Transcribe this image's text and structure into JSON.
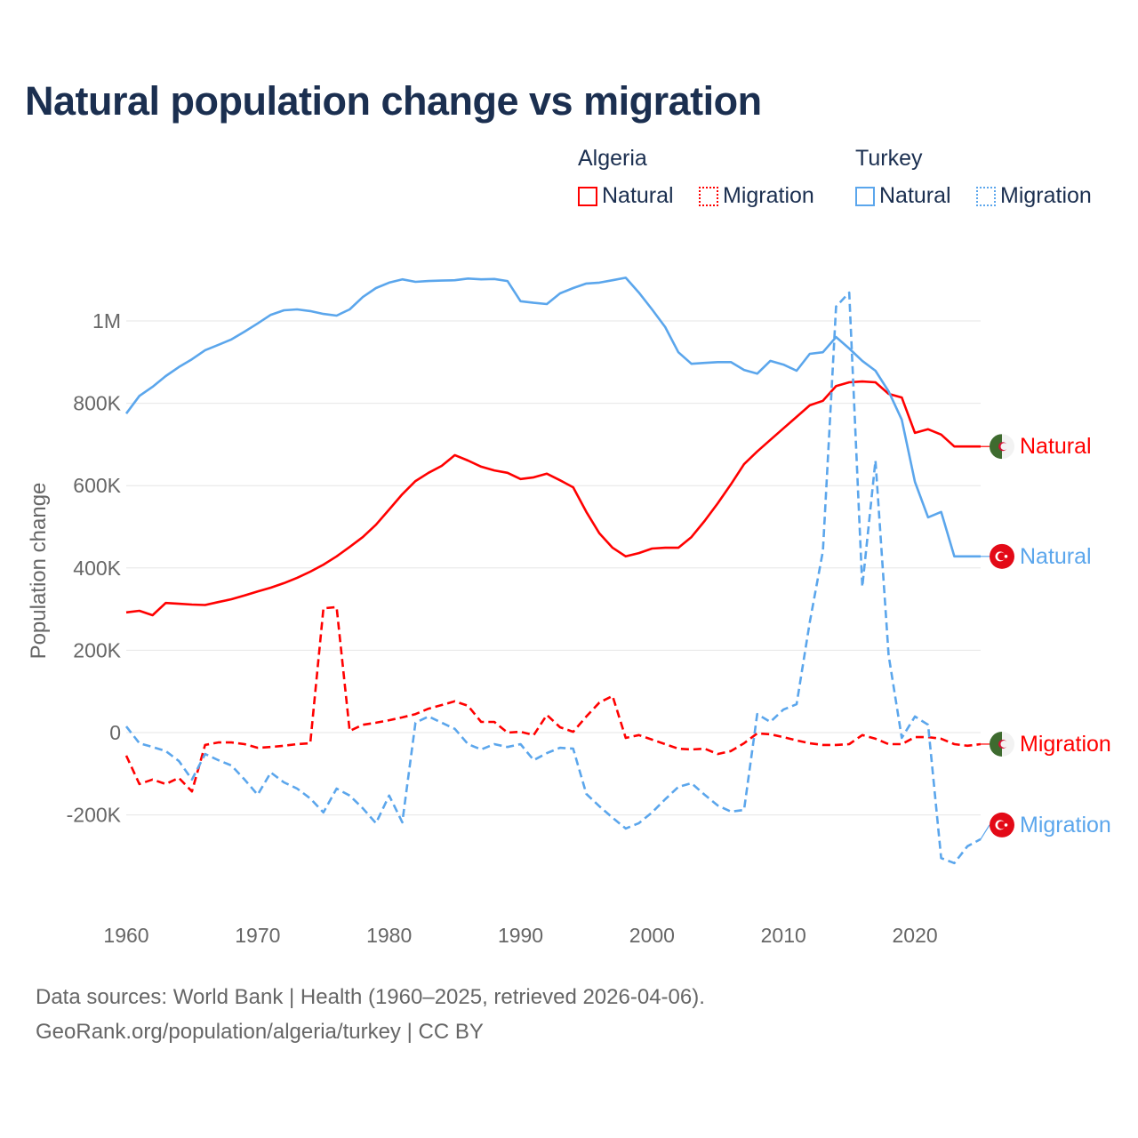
{
  "title": "Natural population change vs migration",
  "legend": {
    "groups": [
      {
        "name": "Algeria",
        "items": [
          "Natural",
          "Migration"
        ]
      },
      {
        "name": "Turkey",
        "items": [
          "Natural",
          "Migration"
        ]
      }
    ]
  },
  "colors": {
    "algeria": "#ff0000",
    "turkey": "#5ba6ec",
    "title": "#1b2f50"
  },
  "footer": {
    "line1": "Data sources: World Bank | Health (1960–2025, retrieved 2026-04-06).",
    "line2": "GeoRank.org/population/algeria/turkey | CC BY"
  },
  "chart_data": {
    "type": "line",
    "title": "Natural population change vs migration",
    "xlabel": "",
    "ylabel": "Population change",
    "xlim": [
      1960,
      2025
    ],
    "ylim": [
      -400000,
      1150000
    ],
    "x_ticks": [
      1960,
      1970,
      1980,
      1990,
      2000,
      2010,
      2020
    ],
    "x_tick_labels": [
      "1960",
      "1970",
      "1980",
      "1990",
      "2000",
      "2010",
      "2020"
    ],
    "y_ticks": [
      -200000,
      0,
      200000,
      400000,
      600000,
      800000,
      1000000
    ],
    "y_tick_labels": [
      "-200K",
      "0",
      "200K",
      "400K",
      "600K",
      "800K",
      "1M"
    ],
    "grid": true,
    "legend_placement": "top-right",
    "x_start": 1960,
    "series": [
      {
        "name": "Natural",
        "country": "Algeria",
        "end_label": "Natural",
        "flag": "algeria-flag",
        "style": "solid",
        "color": "#ff0000",
        "values": [
          292,
          296,
          285,
          315,
          313,
          311,
          310,
          317,
          324,
          333,
          343,
          352,
          363,
          376,
          391,
          408,
          428,
          451,
          475,
          505,
          542,
          579,
          611,
          631,
          648,
          674,
          661,
          646,
          637,
          631,
          616,
          620,
          629,
          613,
          596,
          536,
          484,
          449,
          428,
          436,
          447,
          449,
          449,
          475,
          514,
          557,
          603,
          652,
          683,
          711,
          739,
          767,
          795,
          806,
          842,
          851,
          853,
          851,
          823,
          814,
          728,
          737,
          724,
          695,
          695,
          695
        ]
      },
      {
        "name": "Migration",
        "country": "Algeria",
        "end_label": "Migration",
        "flag": "algeria-flag",
        "style": "dashed",
        "color": "#ff0000",
        "values": [
          -56,
          -125,
          -114,
          -125,
          -110,
          -143,
          -30,
          -24,
          -24,
          -28,
          -37,
          -35,
          -32,
          -28,
          -26,
          302,
          305,
          4,
          19,
          24,
          30,
          37,
          45,
          58,
          67,
          76,
          65,
          26,
          26,
          0,
          2,
          -6,
          43,
          13,
          2,
          39,
          73,
          89,
          -13,
          -6,
          -17,
          -28,
          -39,
          -41,
          -39,
          -52,
          -45,
          -26,
          -2,
          -4,
          -11,
          -19,
          -26,
          -30,
          -30,
          -28,
          -6,
          -15,
          -28,
          -28,
          -11,
          -11,
          -15,
          -28,
          -32,
          -28
        ]
      },
      {
        "name": "Natural",
        "country": "Turkey",
        "end_label": "Natural",
        "flag": "turkey-flag",
        "style": "solid",
        "color": "#5ba6ec",
        "values": [
          775,
          818,
          840,
          866,
          888,
          907,
          929,
          942,
          955,
          974,
          994,
          1015,
          1026,
          1028,
          1024,
          1017,
          1013,
          1028,
          1058,
          1080,
          1093,
          1101,
          1095,
          1097,
          1098,
          1099,
          1103,
          1101,
          1102,
          1097,
          1048,
          1044,
          1041,
          1067,
          1080,
          1091,
          1093,
          1099,
          1105,
          1069,
          1028,
          985,
          924,
          896,
          898,
          900,
          900,
          881,
          872,
          903,
          894,
          879,
          920,
          924,
          961,
          933,
          903,
          879,
          829,
          760,
          609,
          523,
          536,
          428,
          428,
          428
        ]
      },
      {
        "name": "Migration",
        "country": "Turkey",
        "end_label": "Migration",
        "flag": "turkey-flag",
        "style": "dashed",
        "color": "#5ba6ec",
        "values": [
          15,
          -26,
          -35,
          -45,
          -69,
          -114,
          -52,
          -67,
          -80,
          -114,
          -151,
          -97,
          -121,
          -136,
          -160,
          -194,
          -136,
          -153,
          -184,
          -220,
          -153,
          -218,
          24,
          39,
          24,
          9,
          -28,
          -41,
          -28,
          -35,
          -28,
          -67,
          -50,
          -37,
          -39,
          -149,
          -179,
          -207,
          -233,
          -220,
          -194,
          -162,
          -132,
          -123,
          -151,
          -177,
          -192,
          -188,
          45,
          26,
          56,
          69,
          268,
          441,
          1035,
          1069,
          354,
          661,
          188,
          -13,
          39,
          19,
          -305,
          -317,
          -276,
          -259
        ]
      }
    ],
    "value_units": "thousands"
  }
}
